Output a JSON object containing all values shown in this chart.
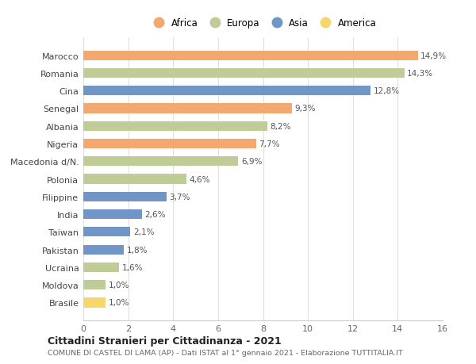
{
  "countries": [
    "Brasile",
    "Moldova",
    "Ucraina",
    "Pakistan",
    "Taiwan",
    "India",
    "Filippine",
    "Polonia",
    "Macedonia d/N.",
    "Nigeria",
    "Albania",
    "Senegal",
    "Cina",
    "Romania",
    "Marocco"
  ],
  "values": [
    1.0,
    1.0,
    1.6,
    1.8,
    2.1,
    2.6,
    3.7,
    4.6,
    6.9,
    7.7,
    8.2,
    9.3,
    12.8,
    14.3,
    14.9
  ],
  "labels": [
    "1,0%",
    "1,0%",
    "1,6%",
    "1,8%",
    "2,1%",
    "2,6%",
    "3,7%",
    "4,6%",
    "6,9%",
    "7,7%",
    "8,2%",
    "9,3%",
    "12,8%",
    "14,3%",
    "14,9%"
  ],
  "continents": [
    "America",
    "Europa",
    "Europa",
    "Asia",
    "Asia",
    "Asia",
    "Asia",
    "Europa",
    "Europa",
    "Africa",
    "Europa",
    "Africa",
    "Asia",
    "Europa",
    "Africa"
  ],
  "continent_colors": {
    "Africa": "#F2A86F",
    "Europa": "#BFCC96",
    "Asia": "#7295C8",
    "America": "#F5D76E"
  },
  "legend_order": [
    "Africa",
    "Europa",
    "Asia",
    "America"
  ],
  "xlim": [
    0,
    16
  ],
  "xticks": [
    0,
    2,
    4,
    6,
    8,
    10,
    12,
    14,
    16
  ],
  "title": "Cittadini Stranieri per Cittadinanza - 2021",
  "subtitle": "COMUNE DI CASTEL DI LAMA (AP) - Dati ISTAT al 1° gennaio 2021 - Elaborazione TUTTITALIA.IT",
  "background_color": "#ffffff",
  "grid_color": "#e0e0e0"
}
